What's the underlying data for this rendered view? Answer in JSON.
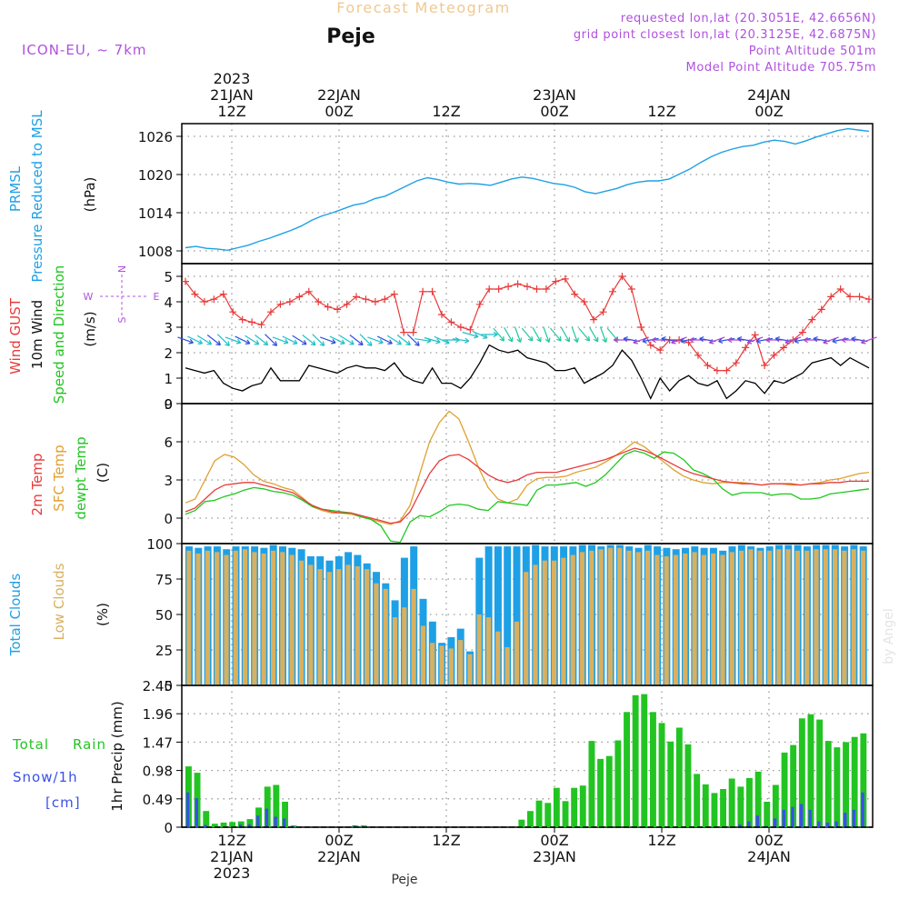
{
  "header": {
    "title": "Forecast Meteogram",
    "station": "Peje",
    "model": "ICON-EU, ~ 7km",
    "requested": "requested lon,lat (20.3051E, 42.6656N)",
    "grid_point": "grid point closest lon,lat (20.3125E, 42.6875N)",
    "point_altitude": "Point Altitude 501m",
    "model_altitude": "Model Point Altitude 705.75m",
    "footer": "Peje",
    "credit": "by Angel"
  },
  "colors": {
    "pressure": "#1ea0e6",
    "gust": "#e83a3a",
    "wind": "#000000",
    "temp2m": "#e83a3a",
    "sfctemp": "#e0a030",
    "dewpt": "#1ec81e",
    "cloud_total": "#1ea0e6",
    "cloud_low": "#d8b060",
    "rain": "#22c422",
    "snow": "#3a50e8",
    "grid": "#999999",
    "purple": "#b050e0",
    "title": "#f0c890"
  },
  "top_axis": [
    {
      "line1": "2023",
      "line2": "21JAN",
      "line3": "12Z"
    },
    {
      "line1": "",
      "line2": "22JAN",
      "line3": "00Z"
    },
    {
      "line1": "",
      "line2": "",
      "line3": "12Z"
    },
    {
      "line1": "",
      "line2": "23JAN",
      "line3": "00Z"
    },
    {
      "line1": "",
      "line2": "",
      "line3": "12Z"
    },
    {
      "line1": "",
      "line2": "24JAN",
      "line3": "00Z"
    }
  ],
  "bottom_axis": [
    {
      "line1": "12Z",
      "line2": "21JAN",
      "line3": "2023"
    },
    {
      "line1": "00Z",
      "line2": "22JAN",
      "line3": ""
    },
    {
      "line1": "12Z",
      "line2": "",
      "line3": ""
    },
    {
      "line1": "00Z",
      "line2": "23JAN",
      "line3": ""
    },
    {
      "line1": "12Z",
      "line2": "",
      "line3": ""
    },
    {
      "line1": "00Z",
      "line2": "24JAN",
      "line3": ""
    }
  ],
  "panels": {
    "pressure": {
      "label1": "PRMSL",
      "label2": "Pressure Reduced to MSL",
      "unit": "(hPa)",
      "ticks": [
        "1008",
        "1014",
        "1020",
        "1026"
      ]
    },
    "wind": {
      "label_gust": "Wind GUST",
      "label_wind": "10m Wind",
      "label_dir": "Speed and Direction",
      "unit": "(m/s)",
      "ticks": [
        "0",
        "1",
        "2",
        "3",
        "4",
        "5"
      ],
      "compass_n": "N",
      "compass_s": "S",
      "compass_w": "W",
      "compass_e": "E"
    },
    "temp": {
      "label1": "2m Temp",
      "label2": "SFC Temp",
      "label3": "dewpt Temp",
      "unit": "(C)",
      "ticks": [
        "0",
        "3",
        "6",
        "9"
      ]
    },
    "clouds": {
      "label1": "Total Clouds",
      "label2": "Low Clouds",
      "unit": "(%)",
      "ticks": [
        "0",
        "25",
        "50",
        "75",
        "100"
      ]
    },
    "precip": {
      "label1": "Total",
      "label1b": "Rain",
      "label2": "Snow/1h",
      "label3": "[cm]",
      "unit": "1hr Precip (mm)",
      "ticks": [
        "0",
        "0.49",
        "0.98",
        "1.47",
        "1.96",
        "2.45"
      ]
    }
  },
  "chart_data": [
    {
      "type": "line",
      "title": "PRMSL Pressure Reduced to MSL",
      "ylabel": "hPa",
      "x_start": "2023-01-21 09Z",
      "x_step_hours": 1,
      "ylim": [
        1006,
        1028
      ],
      "series": [
        {
          "name": "PRMSL",
          "values": [
            1008.5,
            1008.7,
            1008.4,
            1008.3,
            1008.1,
            1008.5,
            1008.9,
            1009.5,
            1010.0,
            1010.6,
            1011.2,
            1011.9,
            1012.8,
            1013.5,
            1014.0,
            1014.6,
            1015.2,
            1015.5,
            1016.2,
            1016.6,
            1017.4,
            1018.2,
            1019.0,
            1019.5,
            1019.2,
            1018.8,
            1018.5,
            1018.6,
            1018.5,
            1018.3,
            1018.8,
            1019.3,
            1019.6,
            1019.4,
            1019.0,
            1018.6,
            1018.4,
            1018.0,
            1017.3,
            1017.0,
            1017.4,
            1017.8,
            1018.4,
            1018.8,
            1019.0,
            1019.0,
            1019.3,
            1020.1,
            1020.9,
            1021.9,
            1022.8,
            1023.5,
            1024.0,
            1024.4,
            1024.6,
            1025.1,
            1025.4,
            1025.2,
            1024.8,
            1025.3,
            1025.9,
            1026.4,
            1026.9,
            1027.2,
            1027.0,
            1026.8
          ]
        }
      ]
    },
    {
      "type": "line",
      "title": "Wind GUST / 10m Wind Speed and Direction",
      "ylabel": "m/s",
      "ylim": [
        0,
        5.5
      ],
      "series": [
        {
          "name": "Wind GUST",
          "values": [
            4.8,
            4.3,
            4.0,
            4.1,
            4.3,
            3.6,
            3.3,
            3.2,
            3.1,
            3.6,
            3.9,
            4.0,
            4.2,
            4.4,
            4.0,
            3.8,
            3.7,
            3.9,
            4.2,
            4.1,
            4.0,
            4.1,
            4.3,
            2.8,
            2.8,
            4.4,
            4.4,
            3.5,
            3.2,
            3.0,
            2.9,
            3.9,
            4.5,
            4.5,
            4.6,
            4.7,
            4.6,
            4.5,
            4.5,
            4.8,
            4.9,
            4.3,
            4.0,
            3.3,
            3.6,
            4.4,
            5.0,
            4.5,
            3.0,
            2.3,
            2.1,
            2.5,
            2.5,
            2.4,
            1.9,
            1.5,
            1.3,
            1.3,
            1.6,
            2.2,
            2.7,
            1.5,
            1.9,
            2.2,
            2.5,
            2.8,
            3.3,
            3.7,
            4.2,
            4.5,
            4.2,
            4.2,
            4.1
          ]
        },
        {
          "name": "10m Wind",
          "values": [
            1.4,
            1.3,
            1.2,
            1.3,
            0.8,
            0.6,
            0.5,
            0.7,
            0.8,
            1.4,
            0.9,
            0.9,
            0.9,
            1.5,
            1.4,
            1.3,
            1.2,
            1.4,
            1.5,
            1.4,
            1.4,
            1.3,
            1.6,
            1.1,
            0.9,
            0.8,
            1.4,
            0.8,
            0.8,
            0.6,
            1.0,
            1.6,
            2.3,
            2.1,
            2.0,
            2.1,
            1.8,
            1.7,
            1.6,
            1.3,
            1.3,
            1.4,
            0.8,
            1.0,
            1.2,
            1.5,
            2.1,
            1.7,
            1.0,
            0.2,
            1.0,
            0.5,
            0.9,
            1.1,
            0.8,
            0.7,
            0.9,
            0.2,
            0.5,
            0.9,
            0.8,
            0.4,
            0.9,
            0.8,
            1.0,
            1.2,
            1.6,
            1.7,
            1.8,
            1.5,
            1.8,
            1.6,
            1.4
          ]
        }
      ]
    },
    {
      "type": "line",
      "title": "2m Temp / SFC Temp / dewpt Temp",
      "ylabel": "C",
      "ylim": [
        -2,
        9
      ],
      "series": [
        {
          "name": "2m Temp",
          "values": [
            0.5,
            0.8,
            1.5,
            2.2,
            2.6,
            2.7,
            2.8,
            2.8,
            2.6,
            2.4,
            2.2,
            2.0,
            1.5,
            1.0,
            0.7,
            0.5,
            0.4,
            0.4,
            0.2,
            0.0,
            -0.2,
            -0.4,
            -0.3,
            0.5,
            2.0,
            3.5,
            4.5,
            4.9,
            5.0,
            4.6,
            4.0,
            3.4,
            3.0,
            2.8,
            3.0,
            3.4,
            3.6,
            3.6,
            3.6,
            3.8,
            4.0,
            4.2,
            4.4,
            4.6,
            4.9,
            5.2,
            5.5,
            5.3,
            5.0,
            4.6,
            4.2,
            3.8,
            3.5,
            3.3,
            3.1,
            2.9,
            2.8,
            2.7,
            2.7,
            2.6,
            2.7,
            2.7,
            2.7,
            2.6,
            2.7,
            2.7,
            2.8,
            2.8,
            2.9,
            2.9,
            2.9
          ]
        },
        {
          "name": "SFC Temp",
          "values": [
            1.2,
            1.5,
            3.0,
            4.5,
            5.0,
            4.8,
            4.2,
            3.4,
            2.9,
            2.7,
            2.4,
            2.2,
            1.6,
            0.9,
            0.6,
            0.4,
            0.4,
            0.3,
            0.1,
            -0.1,
            -0.3,
            -0.5,
            -0.2,
            1.0,
            3.5,
            6.0,
            7.5,
            8.4,
            7.8,
            6.0,
            4.0,
            2.4,
            1.5,
            1.2,
            1.5,
            2.6,
            3.1,
            3.2,
            3.2,
            3.3,
            3.6,
            3.8,
            4.0,
            4.4,
            4.9,
            5.4,
            6.0,
            5.6,
            5.0,
            4.4,
            3.8,
            3.3,
            3.0,
            2.8,
            2.7,
            2.8,
            2.8,
            2.8,
            2.7,
            2.6,
            2.7,
            2.7,
            2.6,
            2.6,
            2.7,
            2.8,
            3.0,
            3.1,
            3.3,
            3.5,
            3.6
          ]
        },
        {
          "name": "dewpt Temp",
          "values": [
            0.3,
            0.6,
            1.3,
            1.4,
            1.7,
            1.9,
            2.2,
            2.4,
            2.3,
            2.1,
            2.0,
            1.8,
            1.4,
            0.9,
            0.7,
            0.6,
            0.5,
            0.4,
            0.1,
            -0.1,
            -0.6,
            -1.8,
            -1.9,
            -0.3,
            0.2,
            0.1,
            0.5,
            1.0,
            1.1,
            1.0,
            0.7,
            0.6,
            1.3,
            1.2,
            1.1,
            1.0,
            2.2,
            2.6,
            2.6,
            2.7,
            2.8,
            2.5,
            2.8,
            3.4,
            4.2,
            5.0,
            5.3,
            5.1,
            4.7,
            5.2,
            5.1,
            4.6,
            3.8,
            3.5,
            3.1,
            2.3,
            1.8,
            2.0,
            2.0,
            2.0,
            1.8,
            1.9,
            1.9,
            1.5,
            1.5,
            1.6,
            1.9,
            2.0,
            2.1,
            2.2,
            2.3
          ]
        }
      ]
    },
    {
      "type": "bar",
      "title": "Total Clouds / Low Clouds",
      "ylabel": "%",
      "ylim": [
        0,
        100
      ],
      "series": [
        {
          "name": "Total Clouds",
          "values": [
            98,
            97,
            98,
            98,
            96,
            98,
            98,
            98,
            97,
            99,
            98,
            97,
            96,
            91,
            91,
            88,
            91,
            94,
            92,
            86,
            80,
            72,
            60,
            90,
            98,
            61,
            45,
            30,
            34,
            40,
            24,
            90,
            98,
            98,
            98,
            98,
            98,
            99,
            98,
            98,
            98,
            98,
            99,
            99,
            98,
            99,
            99,
            98,
            97,
            99,
            98,
            97,
            96,
            97,
            98,
            97,
            97,
            95,
            98,
            99,
            98,
            97,
            98,
            99,
            99,
            99,
            98,
            99,
            99,
            99,
            98,
            99,
            98
          ]
        },
        {
          "name": "Low Clouds",
          "values": [
            95,
            93,
            95,
            94,
            92,
            95,
            96,
            94,
            93,
            95,
            94,
            92,
            88,
            85,
            82,
            80,
            82,
            85,
            84,
            82,
            72,
            68,
            48,
            55,
            68,
            42,
            30,
            28,
            26,
            32,
            22,
            50,
            48,
            38,
            27,
            45,
            80,
            85,
            88,
            88,
            90,
            92,
            94,
            95,
            96,
            97,
            97,
            95,
            94,
            95,
            92,
            91,
            92,
            93,
            94,
            92,
            93,
            92,
            94,
            95,
            96,
            95,
            95,
            96,
            96,
            95,
            95,
            96,
            96,
            96,
            95,
            96,
            95
          ]
        }
      ]
    },
    {
      "type": "bar",
      "title": "1hr Precip",
      "ylabel": "1hr Precip (mm)",
      "ylim": [
        0,
        2.45
      ],
      "series": [
        {
          "name": "Total Rain",
          "values": [
            1.05,
            0.94,
            0.28,
            0.06,
            0.08,
            0.09,
            0.1,
            0.14,
            0.34,
            0.7,
            0.73,
            0.44,
            0.03,
            0,
            0,
            0,
            0,
            0,
            0,
            0.03,
            0.03,
            0,
            0,
            0,
            0,
            0,
            0,
            0,
            0,
            0,
            0,
            0,
            0,
            0,
            0,
            0,
            0,
            0,
            0.13,
            0.28,
            0.46,
            0.42,
            0.68,
            0.45,
            0.68,
            0.72,
            1.49,
            1.18,
            1.23,
            1.5,
            1.99,
            2.28,
            2.3,
            1.99,
            1.8,
            1.48,
            1.72,
            1.43,
            0.92,
            0.74,
            0.59,
            0.66,
            0.84,
            0.7,
            0.85,
            0.96,
            0.44,
            0.73,
            1.29,
            1.42,
            1.88,
            1.95,
            1.86,
            1.49,
            1.38,
            1.47,
            1.56,
            1.62
          ]
        },
        {
          "name": "Snow/1h",
          "values": [
            0.6,
            0.5,
            0.04,
            0,
            0,
            0,
            0.05,
            0.05,
            0.2,
            0.32,
            0.18,
            0.15,
            0.02,
            0,
            0,
            0,
            0,
            0,
            0,
            0.03,
            0.02,
            0,
            0,
            0,
            0,
            0,
            0,
            0,
            0,
            0,
            0,
            0,
            0,
            0,
            0,
            0,
            0,
            0,
            0,
            0,
            0,
            0,
            0,
            0,
            0,
            0,
            0,
            0,
            0,
            0,
            0,
            0,
            0,
            0,
            0,
            0,
            0,
            0,
            0,
            0,
            0,
            0,
            0,
            0.05,
            0.1,
            0.2,
            0.02,
            0.15,
            0.3,
            0.35,
            0.4,
            0.3,
            0.1,
            0.08,
            0.1,
            0.25,
            0.3,
            0.6
          ]
        }
      ]
    }
  ]
}
